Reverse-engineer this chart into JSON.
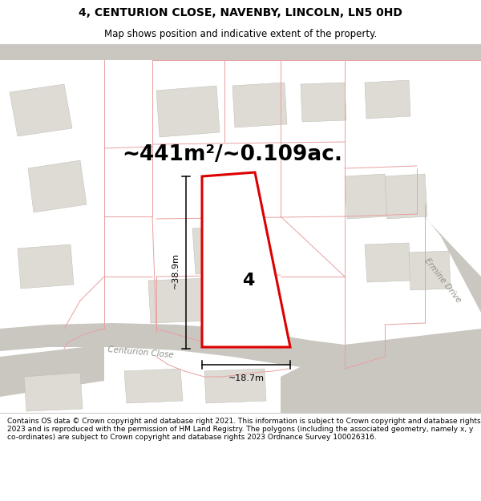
{
  "title": "4, CENTURION CLOSE, NAVENBY, LINCOLN, LN5 0HD",
  "subtitle": "Map shows position and indicative extent of the property.",
  "area_text": "~441m²/~0.109ac.",
  "label_number": "4",
  "dim_height": "~38.9m",
  "dim_width": "~18.7m",
  "road_label": "Centurion Close",
  "road_label2": "Ermine Drive",
  "footer": "Contains OS data © Crown copyright and database right 2021. This information is subject to Crown copyright and database rights 2023 and is reproduced with the permission of HM Land Registry. The polygons (including the associated geometry, namely x, y co-ordinates) are subject to Crown copyright and database rights 2023 Ordnance Survey 100026316.",
  "map_bg": "#f7f6f3",
  "building_color": "#dedbd4",
  "road_fill": "#cac7c0",
  "pink_line": "#e8a0a0",
  "red_outline": "#dd0000",
  "title_fontsize": 10,
  "subtitle_fontsize": 8.5,
  "area_fontsize": 19,
  "dim_fontsize": 8,
  "footer_fontsize": 6.5,
  "number_fontsize": 16
}
